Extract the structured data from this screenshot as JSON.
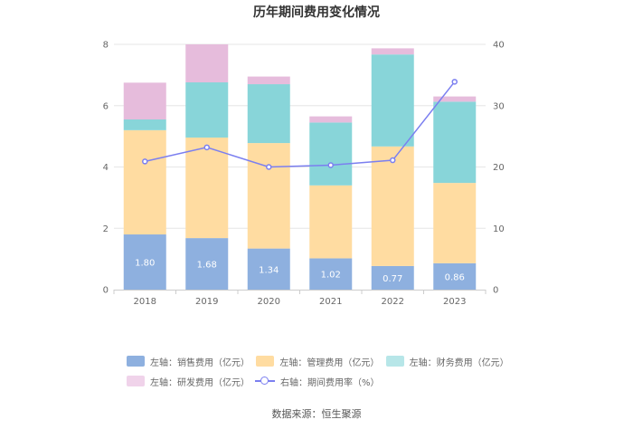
{
  "chart_data": {
    "type": "bar",
    "title": "历年期间费用变化情况",
    "categories": [
      "2018",
      "2019",
      "2020",
      "2021",
      "2022",
      "2023"
    ],
    "stacked": true,
    "left_axis": {
      "ylim": [
        0,
        8
      ],
      "ticks": [
        0,
        2,
        4,
        6,
        8
      ]
    },
    "right_axis": {
      "ylim": [
        0,
        40
      ],
      "ticks": [
        0,
        10,
        20,
        30,
        40
      ]
    },
    "series": [
      {
        "name": "左轴：销售费用（亿元）",
        "axis": "left",
        "color": "#8eb0df",
        "values": [
          1.8,
          1.68,
          1.34,
          1.02,
          0.77,
          0.86
        ],
        "labels": [
          "1.80",
          "1.68",
          "1.34",
          "1.02",
          "0.77",
          "0.86"
        ]
      },
      {
        "name": "左轴：管理费用（亿元）",
        "axis": "left",
        "color": "#ffdca1",
        "values": [
          3.4,
          3.28,
          3.44,
          2.38,
          3.9,
          2.62
        ]
      },
      {
        "name": "左轴：财务费用（亿元）",
        "axis": "left",
        "color": "#88d5d9",
        "values": [
          0.35,
          1.8,
          1.92,
          2.05,
          3.0,
          2.65
        ]
      },
      {
        "name": "左轴：研发费用（亿元）",
        "axis": "left",
        "color": "#e6bcdc",
        "values": [
          1.2,
          1.24,
          0.25,
          0.2,
          0.2,
          0.17
        ]
      },
      {
        "name": "右轴：期间费用率（%）",
        "axis": "right",
        "type": "line",
        "color": "#7b7ff0",
        "values": [
          20.9,
          23.2,
          20.0,
          20.3,
          21.1,
          33.9
        ]
      }
    ]
  },
  "source_text": "数据来源：恒生聚源"
}
